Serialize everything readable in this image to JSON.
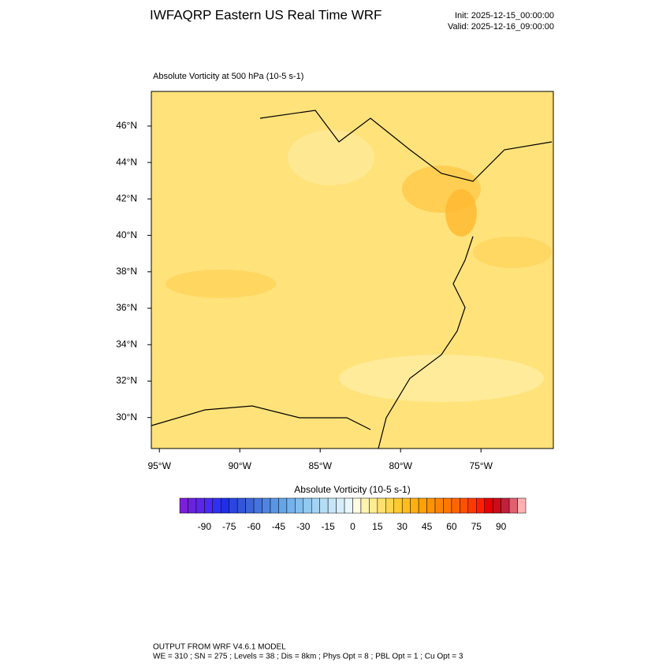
{
  "header": {
    "title": "IWFAQRP Eastern US Real Time WRF",
    "init": "Init: 2025-12-15_00:00:00",
    "valid": "Valid: 2025-12-16_09:00:00"
  },
  "chart_data": {
    "type": "map",
    "subtitle": "Absolute Vorticity at 500 hPa   (10-5 s-1)",
    "xlim": [
      -95.5,
      -70.5
    ],
    "ylim": [
      28.3,
      47.9
    ],
    "xticks": [
      {
        "value": -95,
        "label": "95°W"
      },
      {
        "value": -90,
        "label": "90°W"
      },
      {
        "value": -85,
        "label": "85°W"
      },
      {
        "value": -80,
        "label": "80°W"
      },
      {
        "value": -75,
        "label": "75°W"
      }
    ],
    "yticks": [
      {
        "value": 30,
        "label": "30°N"
      },
      {
        "value": 32,
        "label": "32°N"
      },
      {
        "value": 34,
        "label": "34°N"
      },
      {
        "value": 36,
        "label": "36°N"
      },
      {
        "value": 38,
        "label": "38°N"
      },
      {
        "value": 40,
        "label": "40°N"
      },
      {
        "value": 42,
        "label": "42°N"
      },
      {
        "value": 44,
        "label": "44°N"
      },
      {
        "value": 46,
        "label": "46°N"
      }
    ],
    "colorbar": {
      "title": "Absolute Vorticity  (10-5 s-1)",
      "lim": [
        -105,
        105
      ],
      "ticks": [
        -90,
        -75,
        -60,
        -45,
        -30,
        -15,
        0,
        15,
        30,
        45,
        60,
        75,
        90
      ],
      "colors": [
        "#7b1fd8",
        "#6a22e0",
        "#5a26e8",
        "#4a2af0",
        "#3030f0",
        "#1f2fe8",
        "#2a45e0",
        "#3355d8",
        "#3d65d8",
        "#4575dc",
        "#4f85e0",
        "#5a95e4",
        "#66a4e8",
        "#74b2ec",
        "#82beef",
        "#92c9f1",
        "#a3d3f3",
        "#b4ddf5",
        "#c5e6f8",
        "#d6eefa",
        "#e8f6fd",
        "#fffbe0",
        "#fff3b0",
        "#ffec90",
        "#ffe070",
        "#ffd54f",
        "#ffc930",
        "#ffbd20",
        "#ffb010",
        "#ffa200",
        "#ff9400",
        "#ff8500",
        "#ff7600",
        "#ff6500",
        "#ff5000",
        "#ff3a00",
        "#ff2000",
        "#e80000",
        "#cc0a1a",
        "#c0203a",
        "#e06070",
        "#ffb0b0"
      ]
    }
  },
  "footer": {
    "line1": "OUTPUT FROM WRF V4.6.1 MODEL",
    "line2": "WE = 310 ; SN = 275 ; Levels = 38 ; Dis = 8km ; Phys Opt = 8 ; PBL Opt = 1 ; Cu Opt = 3"
  }
}
